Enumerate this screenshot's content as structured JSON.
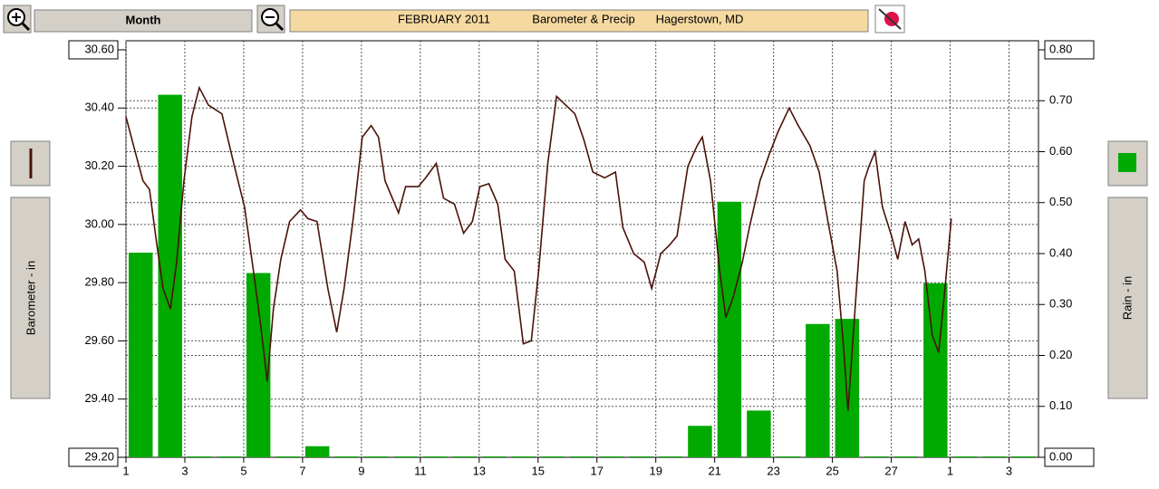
{
  "toolbar": {
    "period": "Month",
    "title_parts": [
      "FEBRUARY 2011",
      "Barometer & Precip",
      "Hagerstown, MD"
    ]
  },
  "chart_data": {
    "type": "combo",
    "xlim": [
      1,
      32
    ],
    "xticks": [
      1,
      3,
      5,
      7,
      9,
      11,
      13,
      15,
      17,
      19,
      21,
      23,
      25,
      27,
      {
        "value": 29,
        "label": "1"
      },
      {
        "value": 31,
        "label": "3"
      }
    ],
    "ylim": [
      29.2,
      30.6
    ],
    "yticks": [
      {
        "value": 29.2,
        "label": "29.20"
      },
      {
        "value": 29.4,
        "label": "29.40"
      },
      {
        "value": 29.6,
        "label": "29.60"
      },
      {
        "value": 29.8,
        "label": "29.80"
      },
      {
        "value": 30,
        "label": "30.00"
      },
      {
        "value": 30.2,
        "label": "30.20"
      },
      {
        "value": 30.4,
        "label": "30.40"
      },
      {
        "value": 30.6,
        "label": "30.60"
      }
    ],
    "y2lim": [
      0,
      0.8
    ],
    "y2ticks": [
      {
        "value": 0,
        "label": "0.00"
      },
      {
        "value": 0.1,
        "label": "0.10"
      },
      {
        "value": 0.2,
        "label": "0.20"
      },
      {
        "value": 0.3,
        "label": "0.30"
      },
      {
        "value": 0.4,
        "label": "0.40"
      },
      {
        "value": 0.5,
        "label": "0.50"
      },
      {
        "value": 0.6,
        "label": "0.60"
      },
      {
        "value": 0.7,
        "label": "0.70"
      },
      {
        "value": 0.8,
        "label": "0.80"
      }
    ],
    "grid": true,
    "series": [
      {
        "name": "Barometer - in",
        "type": "line",
        "color": "#4a1208",
        "x": [
          1.0,
          1.34,
          1.58,
          1.8,
          2.01,
          2.26,
          2.51,
          2.72,
          2.97,
          3.24,
          3.49,
          3.8,
          4.26,
          4.66,
          5.03,
          5.33,
          5.58,
          5.8,
          6.01,
          6.26,
          6.56,
          6.93,
          7.18,
          7.49,
          7.86,
          8.16,
          8.41,
          8.72,
          9.03,
          9.33,
          9.58,
          9.8,
          10.26,
          10.5,
          10.93,
          11.18,
          11.54,
          11.79,
          12.16,
          12.47,
          12.77,
          13.02,
          13.33,
          13.63,
          13.88,
          14.19,
          14.5,
          14.77,
          15.02,
          15.33,
          15.63,
          15.94,
          16.25,
          16.56,
          16.86,
          17.26,
          17.63,
          17.88,
          18.25,
          18.61,
          18.86,
          19.17,
          19.47,
          19.72,
          20.09,
          20.4,
          20.58,
          20.86,
          21.17,
          21.38,
          21.63,
          21.94,
          22.18,
          22.54,
          22.85,
          23.16,
          23.53,
          23.84,
          24.24,
          24.55,
          24.85,
          25.16,
          25.37,
          25.53,
          25.77,
          26.08,
          26.24,
          26.45,
          26.7,
          27.01,
          27.22,
          27.47,
          27.71,
          27.93,
          28.14,
          28.39,
          28.61,
          28.85,
          29.04
        ],
        "values": [
          30.37,
          30.24,
          30.15,
          30.12,
          29.96,
          29.78,
          29.71,
          29.87,
          30.15,
          30.37,
          30.47,
          30.41,
          30.38,
          30.21,
          30.06,
          29.84,
          29.65,
          29.46,
          29.71,
          29.88,
          30.01,
          30.05,
          30.02,
          30.01,
          29.78,
          29.63,
          29.78,
          30.02,
          30.3,
          30.34,
          30.3,
          30.15,
          30.04,
          30.13,
          30.13,
          30.16,
          30.21,
          30.09,
          30.07,
          29.97,
          30.01,
          30.13,
          30.14,
          30.07,
          29.88,
          29.84,
          29.59,
          29.6,
          29.84,
          30.21,
          30.44,
          30.41,
          30.38,
          30.29,
          30.18,
          30.16,
          30.18,
          29.99,
          29.9,
          29.87,
          29.78,
          29.9,
          29.93,
          29.96,
          30.2,
          30.27,
          30.3,
          30.15,
          29.84,
          29.68,
          29.75,
          29.87,
          29.99,
          30.15,
          30.24,
          30.32,
          30.4,
          30.34,
          30.27,
          30.18,
          30.01,
          29.84,
          29.59,
          29.36,
          29.71,
          30.15,
          30.2,
          30.25,
          30.06,
          29.96,
          29.88,
          30.01,
          29.93,
          29.95,
          29.84,
          29.62,
          29.56,
          29.81,
          30.02
        ]
      },
      {
        "name": "Rain - in",
        "type": "bar",
        "axis": "y2",
        "color": "#00aa00",
        "x": [
          1,
          2,
          3,
          4,
          5,
          6,
          7,
          8,
          9,
          10,
          11,
          12,
          13,
          14,
          15,
          16,
          17,
          18,
          19,
          20,
          21,
          22,
          23,
          24,
          25,
          26,
          27,
          28,
          29,
          30,
          31
        ],
        "values": [
          0.4,
          0.71,
          0,
          0,
          0.36,
          0,
          0.02,
          0,
          0,
          0,
          0,
          0,
          0,
          0,
          0,
          0,
          0,
          0,
          0,
          0.06,
          0.5,
          0.09,
          0,
          0.26,
          0.27,
          0,
          0,
          0.34,
          0,
          0,
          0
        ]
      }
    ]
  }
}
